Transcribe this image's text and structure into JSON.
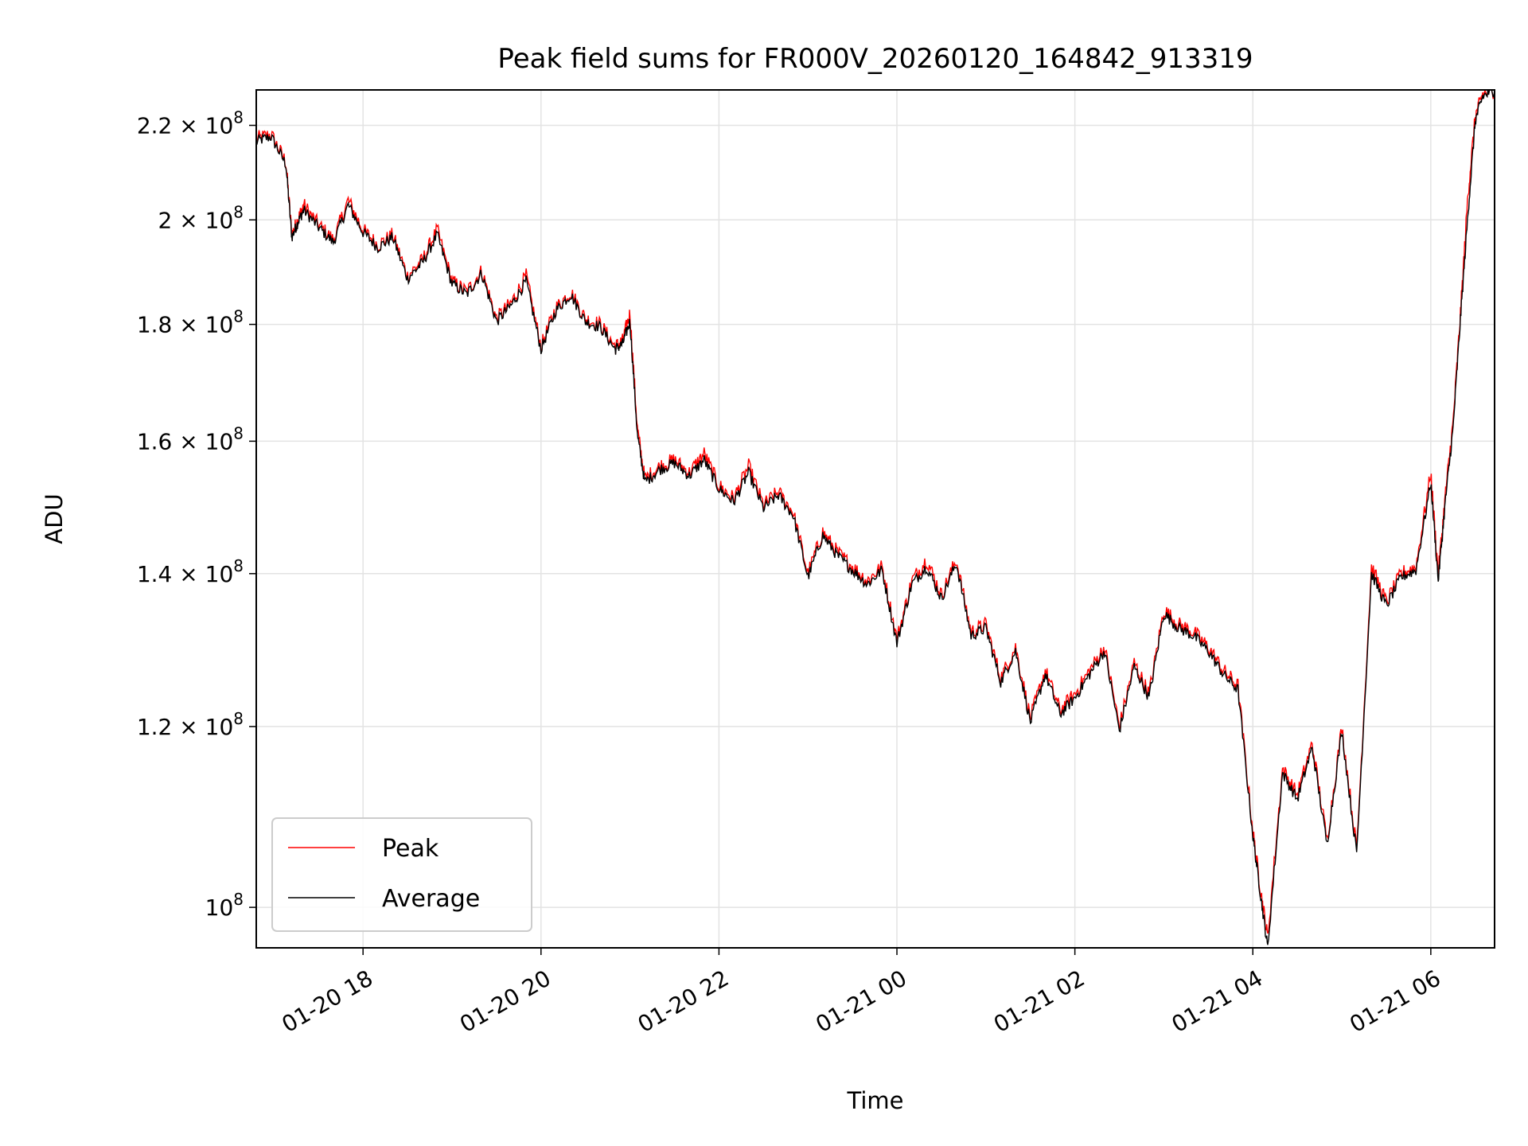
{
  "chart_data": {
    "type": "line",
    "title": "Peak field sums for FR000V_20260120_164842_913319",
    "xlabel": "Time",
    "ylabel": "ADU",
    "x_unit": "datetime",
    "xlim": [
      "2026-01-20 16:48",
      "2026-01-21 06:43"
    ],
    "ylim": [
      96000000,
      228000000
    ],
    "yscale": "log",
    "grid": true,
    "legend_position": "lower-left",
    "x_ticks": [
      "01-20 18",
      "01-20 20",
      "01-20 22",
      "01-21 00",
      "01-21 02",
      "01-21 04",
      "01-21 06"
    ],
    "x_tick_values": [
      "2026-01-20 18:00",
      "2026-01-20 20:00",
      "2026-01-20 22:00",
      "2026-01-21 00:00",
      "2026-01-21 02:00",
      "2026-01-21 04:00",
      "2026-01-21 06:00"
    ],
    "y_ticks": [
      {
        "value": 100000000,
        "mantissa": "",
        "exp": "8",
        "base": "10"
      },
      {
        "value": 120000000,
        "mantissa": "1.2",
        "exp": "8",
        "base": "10"
      },
      {
        "value": 140000000,
        "mantissa": "1.4",
        "exp": "8",
        "base": "10"
      },
      {
        "value": 160000000,
        "mantissa": "1.6",
        "exp": "8",
        "base": "10"
      },
      {
        "value": 180000000,
        "mantissa": "1.8",
        "exp": "8",
        "base": "10"
      },
      {
        "value": 200000000,
        "mantissa": "2",
        "exp": "8",
        "base": "10"
      },
      {
        "value": 220000000,
        "mantissa": "2.2",
        "exp": "8",
        "base": "10"
      }
    ],
    "series": [
      {
        "name": "Peak",
        "color": "#ff0000",
        "x": [
          "2026-01-20 16:48",
          "2026-01-20 16:58",
          "2026-01-20 17:08",
          "2026-01-20 17:12",
          "2026-01-20 17:16",
          "2026-01-20 17:20",
          "2026-01-20 17:30",
          "2026-01-20 17:40",
          "2026-01-20 17:50",
          "2026-01-20 18:00",
          "2026-01-20 18:10",
          "2026-01-20 18:20",
          "2026-01-20 18:30",
          "2026-01-20 18:40",
          "2026-01-20 18:50",
          "2026-01-20 19:00",
          "2026-01-20 19:10",
          "2026-01-20 19:20",
          "2026-01-20 19:30",
          "2026-01-20 19:40",
          "2026-01-20 19:50",
          "2026-01-20 20:00",
          "2026-01-20 20:10",
          "2026-01-20 20:20",
          "2026-01-20 20:30",
          "2026-01-20 20:40",
          "2026-01-20 20:50",
          "2026-01-20 20:55",
          "2026-01-20 21:00",
          "2026-01-20 21:05",
          "2026-01-20 21:10",
          "2026-01-20 21:20",
          "2026-01-20 21:30",
          "2026-01-20 21:40",
          "2026-01-20 21:50",
          "2026-01-20 22:00",
          "2026-01-20 22:10",
          "2026-01-20 22:20",
          "2026-01-20 22:30",
          "2026-01-20 22:40",
          "2026-01-20 22:50",
          "2026-01-20 23:00",
          "2026-01-20 23:10",
          "2026-01-20 23:20",
          "2026-01-20 23:30",
          "2026-01-20 23:40",
          "2026-01-20 23:50",
          "2026-01-21 00:00",
          "2026-01-21 00:10",
          "2026-01-21 00:20",
          "2026-01-21 00:30",
          "2026-01-21 00:40",
          "2026-01-21 00:50",
          "2026-01-21 01:00",
          "2026-01-21 01:10",
          "2026-01-21 01:20",
          "2026-01-21 01:30",
          "2026-01-21 01:40",
          "2026-01-21 01:50",
          "2026-01-21 02:00",
          "2026-01-21 02:10",
          "2026-01-21 02:20",
          "2026-01-21 02:30",
          "2026-01-21 02:40",
          "2026-01-21 02:50",
          "2026-01-21 03:00",
          "2026-01-21 03:10",
          "2026-01-21 03:20",
          "2026-01-21 03:30",
          "2026-01-21 03:40",
          "2026-01-21 03:50",
          "2026-01-21 04:00",
          "2026-01-21 04:05",
          "2026-01-21 04:10",
          "2026-01-21 04:20",
          "2026-01-21 04:30",
          "2026-01-21 04:40",
          "2026-01-21 04:50",
          "2026-01-21 05:00",
          "2026-01-21 05:10",
          "2026-01-21 05:20",
          "2026-01-21 05:30",
          "2026-01-21 05:40",
          "2026-01-21 05:50",
          "2026-01-21 06:00",
          "2026-01-21 06:05",
          "2026-01-21 06:10",
          "2026-01-21 06:15",
          "2026-01-21 06:20",
          "2026-01-21 06:25",
          "2026-01-21 06:30",
          "2026-01-21 06:35",
          "2026-01-21 06:43"
        ],
        "values": [
          217000000,
          218000000,
          212000000,
          197000000,
          200000000,
          203000000,
          199000000,
          196000000,
          204000000,
          198000000,
          195000000,
          197000000,
          189000000,
          192000000,
          198000000,
          188000000,
          186000000,
          190000000,
          181000000,
          184000000,
          189000000,
          176000000,
          183000000,
          186000000,
          181000000,
          180000000,
          176000000,
          177000000,
          182000000,
          162000000,
          154000000,
          156000000,
          157000000,
          155000000,
          158000000,
          153000000,
          151000000,
          156000000,
          150000000,
          152000000,
          149000000,
          140000000,
          146000000,
          143000000,
          141000000,
          139000000,
          141000000,
          131000000,
          139000000,
          142000000,
          137000000,
          142000000,
          132000000,
          133000000,
          126000000,
          130000000,
          121000000,
          127000000,
          122000000,
          124000000,
          127000000,
          130000000,
          120000000,
          128000000,
          124000000,
          135000000,
          133000000,
          132000000,
          130000000,
          127000000,
          125000000,
          108000000,
          102000000,
          97000000,
          115000000,
          112000000,
          118000000,
          107000000,
          120000000,
          106000000,
          141000000,
          136000000,
          140000000,
          141000000,
          155000000,
          140000000,
          152000000,
          163000000,
          182000000,
          205000000,
          222000000,
          227000000,
          228000000
        ]
      },
      {
        "name": "Average",
        "color": "#000000",
        "x": [
          "2026-01-20 16:48",
          "2026-01-20 16:58",
          "2026-01-20 17:08",
          "2026-01-20 17:12",
          "2026-01-20 17:16",
          "2026-01-20 17:20",
          "2026-01-20 17:30",
          "2026-01-20 17:40",
          "2026-01-20 17:50",
          "2026-01-20 18:00",
          "2026-01-20 18:10",
          "2026-01-20 18:20",
          "2026-01-20 18:30",
          "2026-01-20 18:40",
          "2026-01-20 18:50",
          "2026-01-20 19:00",
          "2026-01-20 19:10",
          "2026-01-20 19:20",
          "2026-01-20 19:30",
          "2026-01-20 19:40",
          "2026-01-20 19:50",
          "2026-01-20 20:00",
          "2026-01-20 20:10",
          "2026-01-20 20:20",
          "2026-01-20 20:30",
          "2026-01-20 20:40",
          "2026-01-20 20:50",
          "2026-01-20 20:55",
          "2026-01-20 21:00",
          "2026-01-20 21:05",
          "2026-01-20 21:10",
          "2026-01-20 21:20",
          "2026-01-20 21:30",
          "2026-01-20 21:40",
          "2026-01-20 21:50",
          "2026-01-20 22:00",
          "2026-01-20 22:10",
          "2026-01-20 22:20",
          "2026-01-20 22:30",
          "2026-01-20 22:40",
          "2026-01-20 22:50",
          "2026-01-20 23:00",
          "2026-01-20 23:10",
          "2026-01-20 23:20",
          "2026-01-20 23:30",
          "2026-01-20 23:40",
          "2026-01-20 23:50",
          "2026-01-21 00:00",
          "2026-01-21 00:10",
          "2026-01-21 00:20",
          "2026-01-21 00:30",
          "2026-01-21 00:40",
          "2026-01-21 00:50",
          "2026-01-21 01:00",
          "2026-01-21 01:10",
          "2026-01-21 01:20",
          "2026-01-21 01:30",
          "2026-01-21 01:40",
          "2026-01-21 01:50",
          "2026-01-21 02:00",
          "2026-01-21 02:10",
          "2026-01-21 02:20",
          "2026-01-21 02:30",
          "2026-01-21 02:40",
          "2026-01-21 02:50",
          "2026-01-21 03:00",
          "2026-01-21 03:10",
          "2026-01-21 03:20",
          "2026-01-21 03:30",
          "2026-01-21 03:40",
          "2026-01-21 03:50",
          "2026-01-21 04:00",
          "2026-01-21 04:05",
          "2026-01-21 04:10",
          "2026-01-21 04:20",
          "2026-01-21 04:30",
          "2026-01-21 04:40",
          "2026-01-21 04:50",
          "2026-01-21 05:00",
          "2026-01-21 05:10",
          "2026-01-21 05:20",
          "2026-01-21 05:30",
          "2026-01-21 05:40",
          "2026-01-21 05:50",
          "2026-01-21 06:00",
          "2026-01-21 06:05",
          "2026-01-21 06:10",
          "2026-01-21 06:15",
          "2026-01-21 06:20",
          "2026-01-21 06:25",
          "2026-01-21 06:30",
          "2026-01-21 06:35",
          "2026-01-21 06:43"
        ],
        "values": [
          216500000,
          217500000,
          211500000,
          196500000,
          199500000,
          202000000,
          198500000,
          195500000,
          203000000,
          197500000,
          194500000,
          196500000,
          188500000,
          191500000,
          197000000,
          187500000,
          185500000,
          189500000,
          180500000,
          183500000,
          188000000,
          175500000,
          182500000,
          185500000,
          180500000,
          179500000,
          175500000,
          176500000,
          180500000,
          161000000,
          153500000,
          155500000,
          156500000,
          154500000,
          157000000,
          152500000,
          150500000,
          155000000,
          149500000,
          151500000,
          148500000,
          139500000,
          145500000,
          142500000,
          140500000,
          138500000,
          140500000,
          130500000,
          138500000,
          141000000,
          136500000,
          141500000,
          131500000,
          132500000,
          125500000,
          129500000,
          120500000,
          126500000,
          121500000,
          123500000,
          126500000,
          129500000,
          119500000,
          127500000,
          123500000,
          134500000,
          132500000,
          131500000,
          129500000,
          126500000,
          124500000,
          107500000,
          101500000,
          96000000,
          114500000,
          111500000,
          117500000,
          106500000,
          119500000,
          105500000,
          140000000,
          135500000,
          139500000,
          140500000,
          153500000,
          139000000,
          151000000,
          162000000,
          181000000,
          201000000,
          221000000,
          226500000,
          228000000
        ]
      }
    ]
  }
}
